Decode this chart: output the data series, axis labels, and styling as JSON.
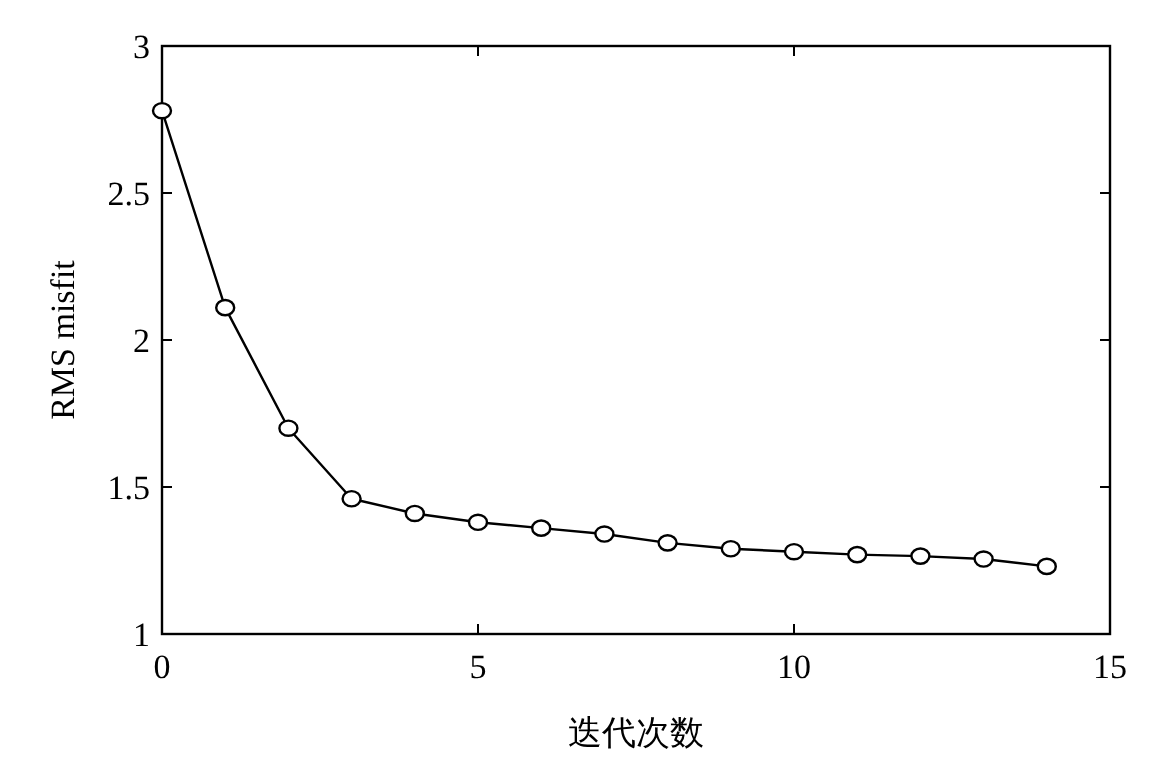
{
  "chart_data": {
    "type": "line",
    "xlabel": "迭代次数",
    "ylabel": "RMS misfit",
    "x": [
      0,
      1,
      2,
      3,
      4,
      5,
      6,
      7,
      8,
      9,
      10,
      11,
      12,
      13,
      14
    ],
    "series": [
      {
        "color": "#000000",
        "values": [
          2.78,
          2.11,
          1.7,
          1.46,
          1.41,
          1.38,
          1.36,
          1.34,
          1.31,
          1.29,
          1.28,
          1.27,
          1.265,
          1.255,
          1.23
        ]
      }
    ],
    "xlim": [
      0,
      15
    ],
    "ylim": [
      1,
      3
    ],
    "xticks": [
      0,
      5,
      10,
      15
    ],
    "yticks": [
      1,
      1.5,
      2,
      2.5,
      3
    ],
    "marker": "circle",
    "line_style": "solid",
    "grid": false
  }
}
